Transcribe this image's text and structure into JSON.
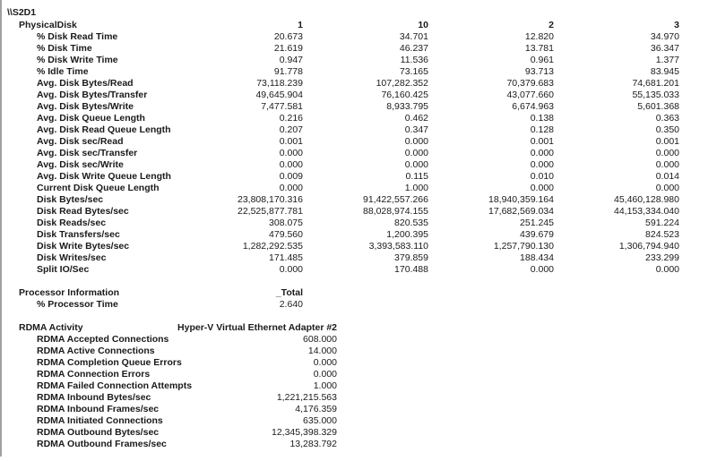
{
  "computer": "\\\\S2D1",
  "sections": [
    {
      "object": "PhysicalDisk",
      "instances": [
        "1",
        "10",
        "2",
        "3"
      ],
      "counters": [
        {
          "name": "% Disk Read Time",
          "values": [
            "20.673",
            "34.701",
            "12.820",
            "34.970"
          ]
        },
        {
          "name": "% Disk Time",
          "values": [
            "21.619",
            "46.237",
            "13.781",
            "36.347"
          ]
        },
        {
          "name": "% Disk Write Time",
          "values": [
            "0.947",
            "11.536",
            "0.961",
            "1.377"
          ]
        },
        {
          "name": "% Idle Time",
          "values": [
            "91.778",
            "73.165",
            "93.713",
            "83.945"
          ]
        },
        {
          "name": "Avg. Disk Bytes/Read",
          "values": [
            "73,118.239",
            "107,282.352",
            "70,379.683",
            "74,681.201"
          ]
        },
        {
          "name": "Avg. Disk Bytes/Transfer",
          "values": [
            "49,645.904",
            "76,160.425",
            "43,077.660",
            "55,135.033"
          ]
        },
        {
          "name": "Avg. Disk Bytes/Write",
          "values": [
            "7,477.581",
            "8,933.795",
            "6,674.963",
            "5,601.368"
          ]
        },
        {
          "name": "Avg. Disk Queue Length",
          "values": [
            "0.216",
            "0.462",
            "0.138",
            "0.363"
          ]
        },
        {
          "name": "Avg. Disk Read Queue Length",
          "values": [
            "0.207",
            "0.347",
            "0.128",
            "0.350"
          ]
        },
        {
          "name": "Avg. Disk sec/Read",
          "values": [
            "0.001",
            "0.000",
            "0.001",
            "0.001"
          ]
        },
        {
          "name": "Avg. Disk sec/Transfer",
          "values": [
            "0.000",
            "0.000",
            "0.000",
            "0.000"
          ]
        },
        {
          "name": "Avg. Disk sec/Write",
          "values": [
            "0.000",
            "0.000",
            "0.000",
            "0.000"
          ]
        },
        {
          "name": "Avg. Disk Write Queue Length",
          "values": [
            "0.009",
            "0.115",
            "0.010",
            "0.014"
          ]
        },
        {
          "name": "Current Disk Queue Length",
          "values": [
            "0.000",
            "1.000",
            "0.000",
            "0.000"
          ]
        },
        {
          "name": "Disk Bytes/sec",
          "values": [
            "23,808,170.316",
            "91,422,557.266",
            "18,940,359.164",
            "45,460,128.980"
          ]
        },
        {
          "name": "Disk Read Bytes/sec",
          "values": [
            "22,525,877.781",
            "88,028,974.155",
            "17,682,569.034",
            "44,153,334.040"
          ]
        },
        {
          "name": "Disk Reads/sec",
          "values": [
            "308.075",
            "820.535",
            "251.245",
            "591.224"
          ]
        },
        {
          "name": "Disk Transfers/sec",
          "values": [
            "479.560",
            "1,200.395",
            "439.679",
            "824.523"
          ]
        },
        {
          "name": "Disk Write Bytes/sec",
          "values": [
            "1,282,292.535",
            "3,393,583.110",
            "1,257,790.130",
            "1,306,794.940"
          ]
        },
        {
          "name": "Disk Writes/sec",
          "values": [
            "171.485",
            "379.859",
            "188.434",
            "233.299"
          ]
        },
        {
          "name": "Split IO/Sec",
          "values": [
            "0.000",
            "170.488",
            "0.000",
            "0.000"
          ]
        }
      ]
    },
    {
      "object": "Processor Information",
      "instances": [
        "_Total"
      ],
      "counters": [
        {
          "name": "% Processor Time",
          "values": [
            "2.640"
          ]
        }
      ]
    },
    {
      "object": "RDMA Activity",
      "instances": [
        "Hyper-V Virtual Ethernet Adapter #2"
      ],
      "counters": [
        {
          "name": "RDMA Accepted Connections",
          "values": [
            "608.000"
          ]
        },
        {
          "name": "RDMA Active Connections",
          "values": [
            "14.000"
          ]
        },
        {
          "name": "RDMA Completion Queue Errors",
          "values": [
            "0.000"
          ]
        },
        {
          "name": "RDMA Connection Errors",
          "values": [
            "0.000"
          ]
        },
        {
          "name": "RDMA Failed Connection Attempts",
          "values": [
            "1.000"
          ]
        },
        {
          "name": "RDMA Inbound Bytes/sec",
          "values": [
            "1,221,215.563"
          ]
        },
        {
          "name": "RDMA Inbound Frames/sec",
          "values": [
            "4,176.359"
          ]
        },
        {
          "name": "RDMA Initiated Connections",
          "values": [
            "635.000"
          ]
        },
        {
          "name": "RDMA Outbound Bytes/sec",
          "values": [
            "12,345,398.329"
          ]
        },
        {
          "name": "RDMA Outbound Frames/sec",
          "values": [
            "13,283.792"
          ]
        }
      ]
    }
  ]
}
